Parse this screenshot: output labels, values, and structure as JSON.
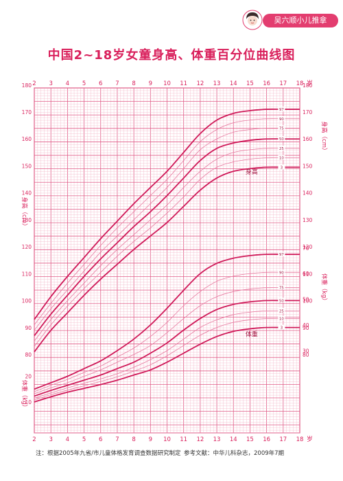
{
  "brand": {
    "badge_text": "吴六顺小儿推拿",
    "accent": "#e33d6f"
  },
  "chart_data": {
    "type": "line",
    "title": "中国2~18岁女童身高、体重百分位曲线图",
    "x_ticks": [
      2,
      3,
      4,
      5,
      6,
      7,
      8,
      9,
      10,
      11,
      12,
      13,
      14,
      15,
      16,
      17,
      18
    ],
    "x_unit": "岁",
    "xlim": [
      2,
      18
    ],
    "height": {
      "label": "身高",
      "axis_label": "身高（cm）",
      "axis_label_right": "身高（cm）",
      "ylim": [
        80,
        180
      ],
      "ticks": [
        80,
        90,
        100,
        110,
        120,
        130,
        140,
        150,
        160,
        170,
        180
      ],
      "percentile_labels": [
        "97",
        "90",
        "75",
        "50",
        "25",
        "10",
        "3"
      ],
      "series": [
        {
          "name": "97",
          "x": [
            2,
            3,
            4,
            5,
            6,
            7,
            8,
            9,
            10,
            11,
            12,
            13,
            14,
            15,
            16,
            17,
            18
          ],
          "values": [
            93,
            101.5,
            109,
            116,
            123,
            129.5,
            136,
            142,
            148,
            155,
            162,
            167,
            169.5,
            170.5,
            171,
            171,
            171
          ]
        },
        {
          "name": "90",
          "x": [
            2,
            3,
            4,
            5,
            6,
            7,
            8,
            9,
            10,
            11,
            12,
            13,
            14,
            15,
            16,
            17,
            18
          ],
          "values": [
            91,
            99,
            106.5,
            113.5,
            120.5,
            127,
            133,
            139,
            145,
            152,
            159,
            163.5,
            166,
            167,
            167.5,
            167.5,
            167.5
          ]
        },
        {
          "name": "75",
          "x": [
            2,
            3,
            4,
            5,
            6,
            7,
            8,
            9,
            10,
            11,
            12,
            13,
            14,
            15,
            16,
            17,
            18
          ],
          "values": [
            89,
            97,
            104,
            111,
            118,
            124,
            130,
            136,
            142,
            149,
            156,
            160,
            162.5,
            163.5,
            164,
            164,
            164
          ]
        },
        {
          "name": "50",
          "x": [
            2,
            3,
            4,
            5,
            6,
            7,
            8,
            9,
            10,
            11,
            12,
            13,
            14,
            15,
            16,
            17,
            18
          ],
          "values": [
            87,
            95,
            102,
            109,
            115.5,
            121.5,
            127.5,
            133,
            139,
            145.5,
            152,
            156.5,
            158.5,
            159.5,
            160,
            160,
            160
          ]
        },
        {
          "name": "25",
          "x": [
            2,
            3,
            4,
            5,
            6,
            7,
            8,
            9,
            10,
            11,
            12,
            13,
            14,
            15,
            16,
            17,
            18
          ],
          "values": [
            85,
            93,
            100,
            106.5,
            113,
            119,
            124.5,
            130,
            135.5,
            142,
            148,
            152.5,
            155,
            156,
            156.5,
            156.5,
            156.5
          ]
        },
        {
          "name": "10",
          "x": [
            2,
            3,
            4,
            5,
            6,
            7,
            8,
            9,
            10,
            11,
            12,
            13,
            14,
            15,
            16,
            17,
            18
          ],
          "values": [
            83,
            91,
            98,
            104.5,
            110.5,
            116.5,
            122,
            127,
            132.5,
            138.5,
            145,
            149.5,
            151.5,
            152.5,
            153,
            153,
            153
          ]
        },
        {
          "name": "3",
          "x": [
            2,
            3,
            4,
            5,
            6,
            7,
            8,
            9,
            10,
            11,
            12,
            13,
            14,
            15,
            16,
            17,
            18
          ],
          "values": [
            81,
            89,
            95.5,
            102,
            108,
            113.5,
            119,
            124,
            129,
            135,
            141,
            145.5,
            148,
            149,
            149.5,
            149.5,
            149.5
          ]
        }
      ]
    },
    "weight": {
      "label": "体重",
      "axis_label": "体重（kg）",
      "axis_label_right": "体重（kg）",
      "ylim": [
        0,
        80
      ],
      "ticks_left": [
        10,
        20
      ],
      "ticks_right": [
        30,
        40,
        50,
        60,
        70
      ],
      "percentile_labels": [
        "97",
        "90",
        "75",
        "50",
        "25",
        "10",
        "3"
      ],
      "series": [
        {
          "name": "97",
          "x": [
            2,
            3,
            4,
            5,
            6,
            7,
            8,
            9,
            10,
            11,
            12,
            13,
            14,
            15,
            16,
            17,
            18
          ],
          "values": [
            15,
            17.5,
            20,
            23,
            26,
            30,
            34.5,
            40,
            46.5,
            53.5,
            60,
            64,
            66,
            67,
            67.5,
            67.5,
            67.5
          ]
        },
        {
          "name": "90",
          "x": [
            2,
            3,
            4,
            5,
            6,
            7,
            8,
            9,
            10,
            11,
            12,
            13,
            14,
            15,
            16,
            17,
            18
          ],
          "values": [
            14,
            16.5,
            18.8,
            21.5,
            24,
            27.5,
            31,
            35.5,
            41,
            47.5,
            53,
            57,
            59,
            60,
            60.5,
            60.5,
            60.5
          ]
        },
        {
          "name": "75",
          "x": [
            2,
            3,
            4,
            5,
            6,
            7,
            8,
            9,
            10,
            11,
            12,
            13,
            14,
            15,
            16,
            17,
            18
          ],
          "values": [
            13.2,
            15.5,
            17.5,
            20,
            22.5,
            25.5,
            28.5,
            32,
            37,
            42.5,
            47.5,
            51,
            53,
            54,
            54.5,
            54.5,
            54.5
          ]
        },
        {
          "name": "50",
          "x": [
            2,
            3,
            4,
            5,
            6,
            7,
            8,
            9,
            10,
            11,
            12,
            13,
            14,
            15,
            16,
            17,
            18
          ],
          "values": [
            12.3,
            14.5,
            16.5,
            18.5,
            20.5,
            23,
            25.5,
            29,
            33,
            38,
            42.5,
            46,
            48,
            49,
            49.5,
            49.5,
            49.5
          ]
        },
        {
          "name": "25",
          "x": [
            2,
            3,
            4,
            5,
            6,
            7,
            8,
            9,
            10,
            11,
            12,
            13,
            14,
            15,
            16,
            17,
            18
          ],
          "values": [
            11.5,
            13.5,
            15.5,
            17.3,
            19,
            21,
            23.5,
            26.5,
            30,
            34.5,
            39,
            42,
            44,
            45,
            45.5,
            45.5,
            45.5
          ]
        },
        {
          "name": "10",
          "x": [
            2,
            3,
            4,
            5,
            6,
            7,
            8,
            9,
            10,
            11,
            12,
            13,
            14,
            15,
            16,
            17,
            18
          ],
          "values": [
            10.8,
            12.8,
            14.6,
            16.3,
            18,
            19.8,
            22,
            24.5,
            28,
            32,
            36,
            39,
            41,
            42,
            42.5,
            42.5,
            42.5
          ]
        },
        {
          "name": "3",
          "x": [
            2,
            3,
            4,
            5,
            6,
            7,
            8,
            9,
            10,
            11,
            12,
            13,
            14,
            15,
            16,
            17,
            18
          ],
          "values": [
            10,
            12,
            13.8,
            15.3,
            16.8,
            18.5,
            20.5,
            22.5,
            25.5,
            29,
            32.5,
            35.5,
            37.5,
            38.5,
            39,
            39,
            39
          ]
        }
      ]
    },
    "grid": true
  },
  "footer": {
    "note": "注：根据2005年九省/市儿童体格发育调查数据研究制定",
    "reference": "参考文献：中华儿科杂志，2009年7期"
  },
  "colors": {
    "grid_major": "#e05a86",
    "grid_minor": "#f4b5c8",
    "bold_curve": "#cf1858",
    "thin_curve": "#e77aa0",
    "text": "#d91f5b"
  }
}
